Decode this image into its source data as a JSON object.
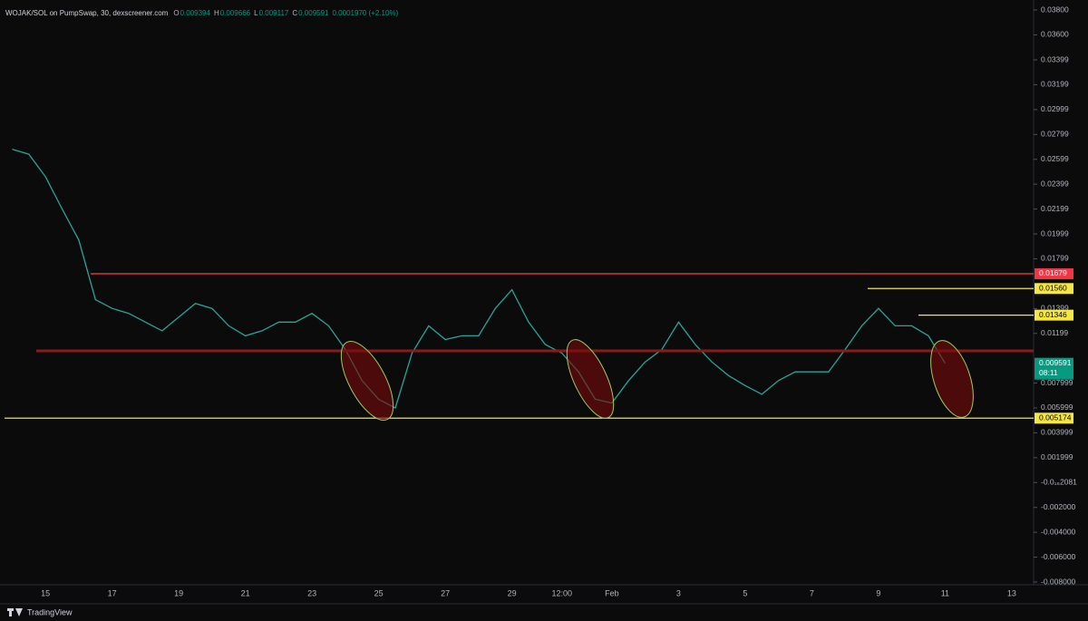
{
  "chart_data": {
    "type": "line",
    "title": "WOJAK/SOL on PumpSwap, 30, dexscreener.com",
    "ohlc": [
      {
        "label": "O",
        "value": "0.009394"
      },
      {
        "label": "H",
        "value": "0.009666"
      },
      {
        "label": "L",
        "value": "0.009117"
      },
      {
        "label": "C",
        "value": "0.009591"
      }
    ],
    "change": "0.0001970 (+2.10%)",
    "categories": [
      null,
      null,
      "15",
      null,
      null,
      null,
      "17",
      null,
      null,
      null,
      "19",
      null,
      null,
      null,
      "21",
      null,
      null,
      null,
      "23",
      null,
      null,
      null,
      "25",
      null,
      null,
      null,
      "27",
      null,
      null,
      null,
      "29",
      null,
      null,
      "12:00",
      null,
      null,
      "Feb",
      null,
      null,
      null,
      "3",
      null,
      null,
      null,
      "5",
      null,
      null,
      null,
      "7",
      null,
      null,
      null,
      "9",
      null,
      null,
      null,
      "11",
      null,
      null,
      null,
      "13"
    ],
    "series": [
      {
        "name": "WOJAK/SOL",
        "color": "#26a69a",
        "values": [
          0.0268,
          0.0264,
          0.0246,
          0.022,
          0.0195,
          0.0147,
          0.014,
          0.0136,
          0.0129,
          0.0122,
          0.0133,
          0.0144,
          0.014,
          0.0126,
          0.0118,
          0.0122,
          0.0129,
          0.0129,
          0.0136,
          0.0126,
          0.0107,
          0.0082,
          0.0067,
          0.006,
          0.0104,
          0.0126,
          0.0115,
          0.0118,
          0.0118,
          0.014,
          0.0155,
          0.0129,
          0.0111,
          0.0104,
          0.0089,
          0.0067,
          0.0064,
          0.0082,
          0.0097,
          0.0107,
          0.0129,
          0.0111,
          0.0097,
          0.0086,
          0.0078,
          0.0071,
          0.0082,
          0.0089,
          0.0089,
          0.0089,
          0.0107,
          0.0126,
          0.014,
          0.0126,
          0.0126,
          0.0118,
          0.009591,
          null,
          null,
          null,
          null
        ]
      }
    ],
    "ylim": [
      -0.008,
      0.038
    ],
    "yticks": [
      {
        "value": 0.038,
        "label": "0.03800"
      },
      {
        "value": 0.036,
        "label": "0.03600"
      },
      0.03399,
      0.03199,
      0.02999,
      0.02799,
      0.02599,
      0.02399,
      0.02199,
      0.01999,
      0.01799,
      0.01399,
      0.01199,
      0.007999,
      0.005999,
      0.003999,
      0.001999,
      {
        "value": -2.081e-17,
        "label": "-0.0₁₆2081"
      },
      {
        "value": -0.002,
        "label": "-0.002000"
      },
      {
        "value": -0.004,
        "label": "-0.004000"
      },
      {
        "value": -0.006,
        "label": "-0.006000"
      },
      {
        "value": -0.008,
        "label": "-0.008000"
      }
    ],
    "levels": [
      {
        "value": 0.01679,
        "color": "#f23645"
      },
      {
        "value": 0.0156,
        "label": "0.01560",
        "color": "#f5e642"
      },
      {
        "value": 0.01346,
        "color": "#f5e642"
      },
      {
        "value": 0.01059,
        "color": "#8b1a1a"
      },
      {
        "value": 0.005174,
        "color": "#f5e642"
      }
    ],
    "last_price": {
      "value": 0.009591,
      "countdown": "08:11",
      "color": "#089981"
    },
    "brand": "TradingView"
  }
}
